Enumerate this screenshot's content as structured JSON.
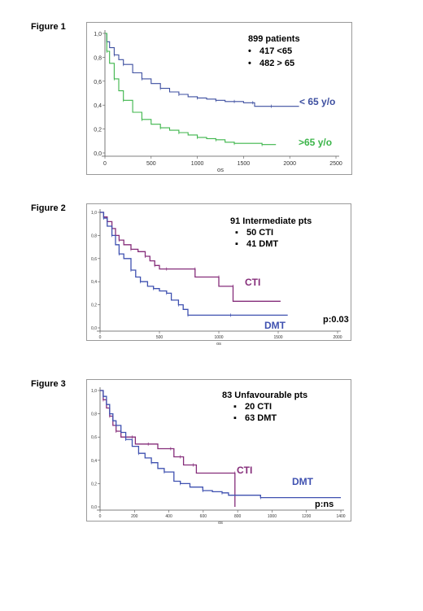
{
  "colors": {
    "blue": "#3d4fa0",
    "green": "#3cb54a",
    "purple": "#852d7a",
    "blue2": "#3f51b0"
  },
  "chart_data": [
    {
      "type": "line",
      "figure_label": "Figure 1",
      "xlabel": "os",
      "xlim": [
        0,
        2500
      ],
      "ylim": [
        0,
        1
      ],
      "xticks": [
        "0",
        "500",
        "1000",
        "1500",
        "2000",
        "2500"
      ],
      "yticks": [
        "0,0",
        "0,2",
        "0,4",
        "0,6",
        "0,8",
        "1,0"
      ],
      "annotation": {
        "title": "899 patients",
        "items": [
          "417 <65",
          "482 > 65"
        ]
      },
      "series": [
        {
          "name": "< 65 y/o",
          "color": "#3d4fa0",
          "points": [
            [
              0,
              1.0
            ],
            [
              20,
              0.93
            ],
            [
              50,
              0.88
            ],
            [
              100,
              0.82
            ],
            [
              150,
              0.78
            ],
            [
              200,
              0.74
            ],
            [
              300,
              0.67
            ],
            [
              400,
              0.62
            ],
            [
              500,
              0.58
            ],
            [
              600,
              0.54
            ],
            [
              700,
              0.51
            ],
            [
              800,
              0.49
            ],
            [
              900,
              0.47
            ],
            [
              1000,
              0.46
            ],
            [
              1100,
              0.45
            ],
            [
              1200,
              0.44
            ],
            [
              1300,
              0.43
            ],
            [
              1400,
              0.43
            ],
            [
              1500,
              0.42
            ],
            [
              1600,
              0.42
            ],
            [
              1620,
              0.39
            ],
            [
              1800,
              0.39
            ],
            [
              2100,
              0.39
            ]
          ]
        },
        {
          "name": ">65 y/o",
          "color": "#3cb54a",
          "points": [
            [
              0,
              1.0
            ],
            [
              20,
              0.85
            ],
            [
              50,
              0.75
            ],
            [
              100,
              0.62
            ],
            [
              150,
              0.52
            ],
            [
              200,
              0.44
            ],
            [
              300,
              0.34
            ],
            [
              400,
              0.28
            ],
            [
              500,
              0.24
            ],
            [
              600,
              0.21
            ],
            [
              700,
              0.19
            ],
            [
              800,
              0.17
            ],
            [
              900,
              0.15
            ],
            [
              1000,
              0.13
            ],
            [
              1100,
              0.12
            ],
            [
              1200,
              0.11
            ],
            [
              1300,
              0.09
            ],
            [
              1400,
              0.08
            ],
            [
              1500,
              0.08
            ],
            [
              1700,
              0.07
            ],
            [
              1850,
              0.07
            ]
          ]
        }
      ]
    },
    {
      "type": "line",
      "figure_label": "Figure 2",
      "xlabel": "os",
      "xlim": [
        0,
        2000
      ],
      "ylim": [
        0,
        1
      ],
      "xticks": [
        "0",
        "500",
        "1000",
        "1500",
        "2000"
      ],
      "yticks": [
        "0,0",
        "0,2",
        "0,4",
        "0,6",
        "0,8",
        "1,0"
      ],
      "annotation": {
        "title": "91 Intermediate pts",
        "items": [
          "50 CTI",
          "41 DMT"
        ]
      },
      "pvalue": "p:0.03",
      "series": [
        {
          "name": "CTI",
          "color": "#852d7a",
          "points": [
            [
              0,
              1.0
            ],
            [
              30,
              0.96
            ],
            [
              60,
              0.92
            ],
            [
              100,
              0.86
            ],
            [
              130,
              0.8
            ],
            [
              160,
              0.76
            ],
            [
              200,
              0.72
            ],
            [
              260,
              0.68
            ],
            [
              320,
              0.66
            ],
            [
              380,
              0.62
            ],
            [
              420,
              0.58
            ],
            [
              460,
              0.54
            ],
            [
              500,
              0.51
            ],
            [
              560,
              0.51
            ],
            [
              600,
              0.51
            ],
            [
              800,
              0.51
            ],
            [
              800,
              0.44
            ],
            [
              1000,
              0.44
            ],
            [
              1000,
              0.36
            ],
            [
              1120,
              0.36
            ],
            [
              1120,
              0.23
            ],
            [
              1520,
              0.23
            ]
          ]
        },
        {
          "name": "DMT",
          "color": "#3f51b0",
          "points": [
            [
              0,
              1.0
            ],
            [
              30,
              0.95
            ],
            [
              60,
              0.88
            ],
            [
              100,
              0.8
            ],
            [
              130,
              0.72
            ],
            [
              160,
              0.64
            ],
            [
              200,
              0.6
            ],
            [
              260,
              0.5
            ],
            [
              300,
              0.44
            ],
            [
              340,
              0.4
            ],
            [
              400,
              0.36
            ],
            [
              450,
              0.34
            ],
            [
              500,
              0.32
            ],
            [
              560,
              0.3
            ],
            [
              600,
              0.24
            ],
            [
              660,
              0.2
            ],
            [
              700,
              0.16
            ],
            [
              740,
              0.11
            ],
            [
              800,
              0.11
            ],
            [
              1100,
              0.11
            ],
            [
              1580,
              0.11
            ]
          ]
        }
      ]
    },
    {
      "type": "line",
      "figure_label": "Figure 3",
      "xlabel": "os",
      "xlim": [
        0,
        1500
      ],
      "ylim": [
        0,
        1
      ],
      "xticks": [
        "0",
        "200",
        "400",
        "600",
        "800",
        "1000",
        "1200",
        "1400"
      ],
      "yticks": [
        "0,0",
        "0,2",
        "0,4",
        "0,6",
        "0,8",
        "1,0"
      ],
      "annotation": {
        "title": "83 Unfavourable pts",
        "items": [
          "20 CTI",
          "63 DMT"
        ]
      },
      "pvalue": "p:ns",
      "series": [
        {
          "name": "CTI",
          "color": "#852d7a",
          "points": [
            [
              0,
              1.0
            ],
            [
              20,
              0.92
            ],
            [
              40,
              0.85
            ],
            [
              60,
              0.78
            ],
            [
              80,
              0.7
            ],
            [
              100,
              0.65
            ],
            [
              130,
              0.6
            ],
            [
              200,
              0.6
            ],
            [
              220,
              0.54
            ],
            [
              300,
              0.54
            ],
            [
              360,
              0.5
            ],
            [
              440,
              0.5
            ],
            [
              460,
              0.43
            ],
            [
              500,
              0.43
            ],
            [
              520,
              0.36
            ],
            [
              580,
              0.36
            ],
            [
              600,
              0.29
            ],
            [
              840,
              0.29
            ],
            [
              840,
              0.0
            ]
          ]
        },
        {
          "name": "DMT",
          "color": "#3f51b0",
          "points": [
            [
              0,
              1.0
            ],
            [
              20,
              0.95
            ],
            [
              40,
              0.88
            ],
            [
              60,
              0.8
            ],
            [
              80,
              0.74
            ],
            [
              100,
              0.7
            ],
            [
              130,
              0.64
            ],
            [
              160,
              0.58
            ],
            [
              200,
              0.52
            ],
            [
              240,
              0.46
            ],
            [
              280,
              0.42
            ],
            [
              320,
              0.38
            ],
            [
              360,
              0.33
            ],
            [
              400,
              0.3
            ],
            [
              460,
              0.22
            ],
            [
              500,
              0.2
            ],
            [
              560,
              0.17
            ],
            [
              640,
              0.14
            ],
            [
              700,
              0.13
            ],
            [
              760,
              0.12
            ],
            [
              800,
              0.1
            ],
            [
              1000,
              0.08
            ],
            [
              1200,
              0.08
            ],
            [
              1500,
              0.08
            ]
          ]
        }
      ]
    }
  ]
}
